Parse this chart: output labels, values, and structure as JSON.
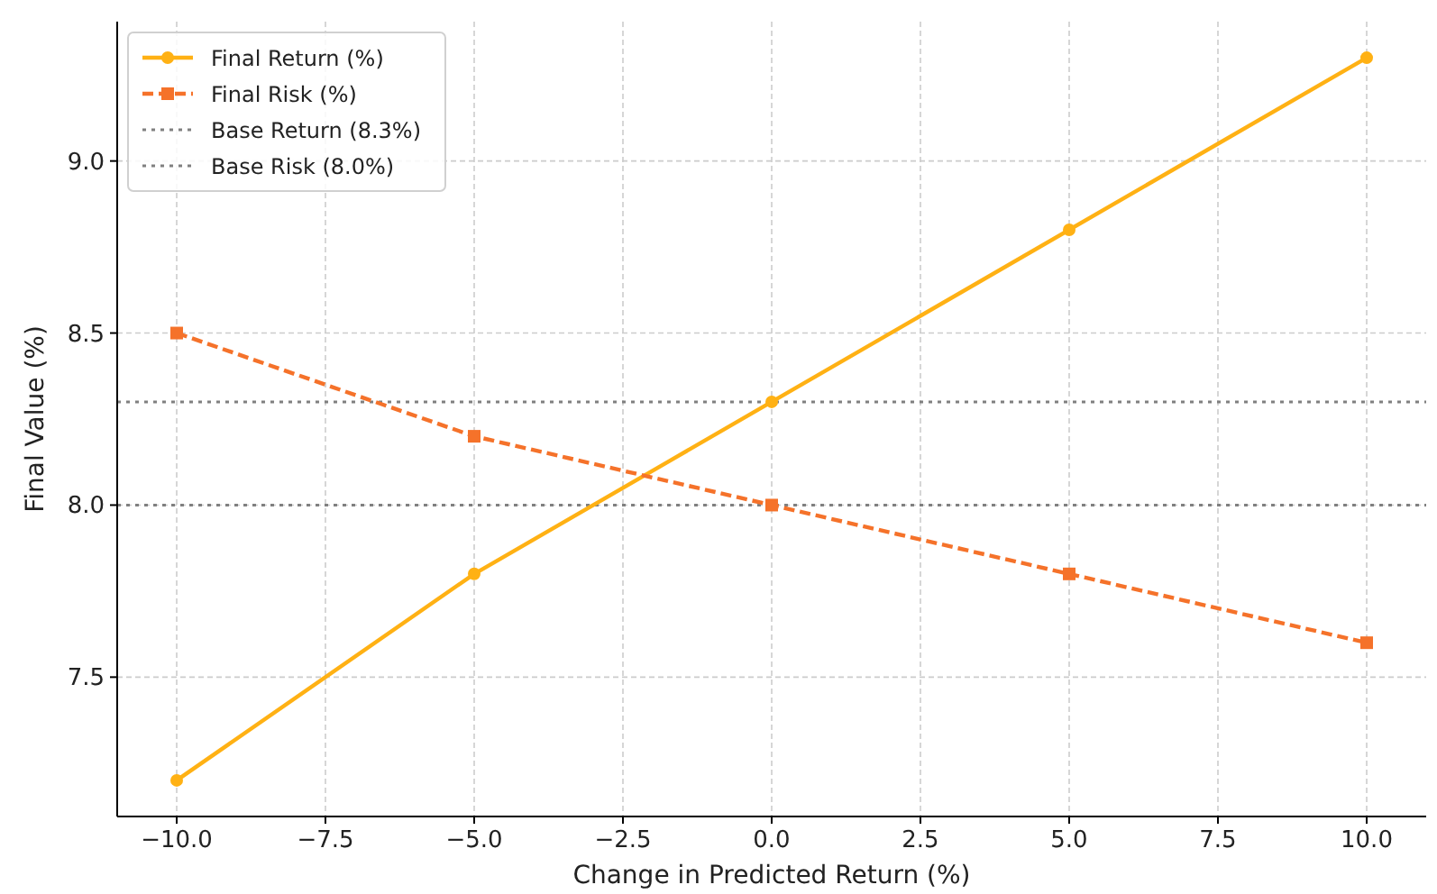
{
  "chart_data": {
    "type": "line",
    "xlabel": "Change in Predicted Return (%)",
    "ylabel": "Final Value (%)",
    "x": [
      -10,
      -5,
      0,
      5,
      10
    ],
    "series": [
      {
        "name": "Final Return (%)",
        "color": "#ffb114",
        "values": [
          7.2,
          7.8,
          8.3,
          8.8,
          9.3
        ],
        "marker": "circle",
        "line_style": "solid"
      },
      {
        "name": "Final Risk (%)",
        "color": "#f5722a",
        "values": [
          8.5,
          8.2,
          8.0,
          7.8,
          7.6
        ],
        "marker": "square",
        "line_style": "dashed"
      }
    ],
    "ref_lines": [
      {
        "axis": "y",
        "value": 8.3,
        "label": "Base Return (8.3%)",
        "color": "#808080",
        "line_style": "dotted"
      },
      {
        "axis": "y",
        "value": 8.0,
        "label": "Base Risk (8.0%)",
        "color": "#808080",
        "line_style": "dotted"
      }
    ],
    "xlim": [
      -11,
      11
    ],
    "xticks": [
      {
        "value": -10,
        "label": "−10.0"
      },
      {
        "value": -7.5,
        "label": "−7.5"
      },
      {
        "value": -5,
        "label": "−5.0"
      },
      {
        "value": -2.5,
        "label": "−2.5"
      },
      {
        "value": 0,
        "label": "0.0"
      },
      {
        "value": 2.5,
        "label": "2.5"
      },
      {
        "value": 5,
        "label": "5.0"
      },
      {
        "value": 7.5,
        "label": "7.5"
      },
      {
        "value": 10,
        "label": "10.0"
      }
    ],
    "ylim": [
      7.095,
      9.405
    ],
    "yticks": [
      {
        "value": 7.5,
        "label": "7.5"
      },
      {
        "value": 8,
        "label": "8.0"
      },
      {
        "value": 8.5,
        "label": "8.5"
      },
      {
        "value": 9,
        "label": "9.0"
      }
    ],
    "grid": true,
    "legend": "top left"
  }
}
